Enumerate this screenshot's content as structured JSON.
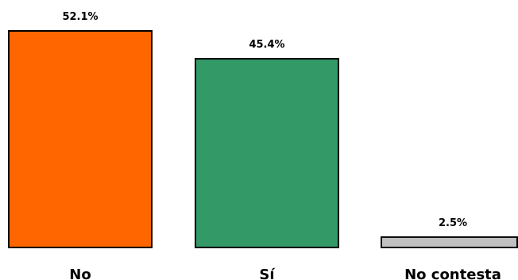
{
  "chart_data": {
    "type": "bar",
    "title": "",
    "xlabel": "",
    "ylabel": "",
    "categories": [
      "No",
      "Sí",
      "No contesta"
    ],
    "values": [
      52.1,
      45.4,
      2.5
    ],
    "value_labels": [
      "52.1%",
      "45.4%",
      "2.5%"
    ],
    "colors": [
      "#ff6600",
      "#339966",
      "#c0c0c0"
    ],
    "ylim": [
      0,
      52.1
    ],
    "grid": false,
    "legend": "none"
  }
}
